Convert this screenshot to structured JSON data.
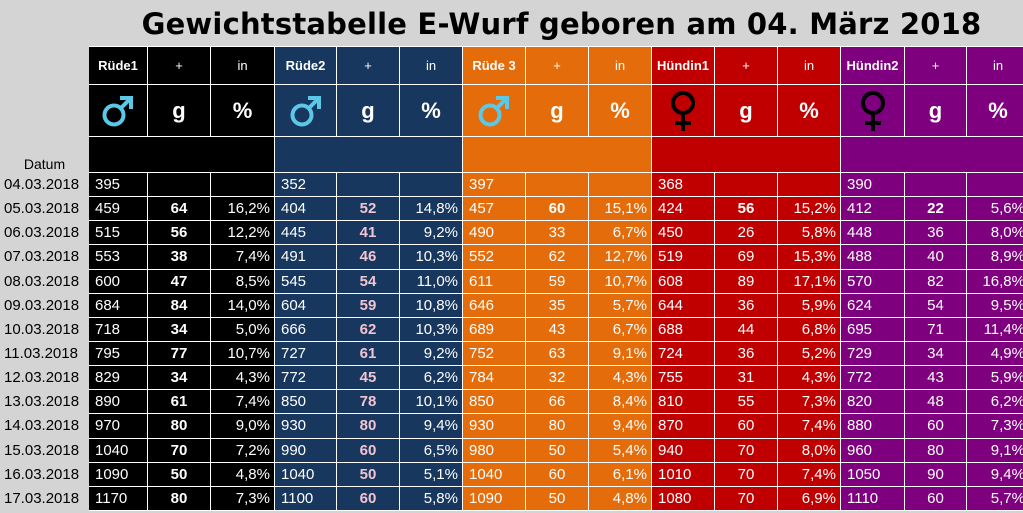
{
  "title": "Gewichtstabelle E-Wurf geboren am 04. März 2018",
  "datum_label": "Datum",
  "unit_g": "g",
  "unit_pct": "%",
  "plus_label": "+",
  "in_label": "in",
  "puppies": [
    {
      "name": "Rüde1",
      "color": "#000000",
      "sex": "male",
      "icon": "male-symbol-icon"
    },
    {
      "name": "Rüde2",
      "color": "#17375e",
      "sex": "male",
      "icon": "male-symbol-icon"
    },
    {
      "name": "Rüde 3",
      "color": "#e46c0a",
      "sex": "male",
      "icon": "male-symbol-icon"
    },
    {
      "name": "Hündin1",
      "color": "#c00000",
      "sex": "female",
      "icon": "female-symbol-icon"
    },
    {
      "name": "Hündin2",
      "color": "#7f007f",
      "sex": "female",
      "icon": "female-symbol-icon"
    }
  ],
  "rows": [
    {
      "date": "04.03.2018",
      "v": [
        [
          "395",
          "",
          ""
        ],
        [
          "352",
          "",
          ""
        ],
        [
          "397",
          "",
          ""
        ],
        [
          "368",
          "",
          ""
        ],
        [
          "390",
          "",
          ""
        ]
      ]
    },
    {
      "date": "05.03.2018",
      "v": [
        [
          "459",
          "64",
          "16,2%"
        ],
        [
          "404",
          "52",
          "14,8%"
        ],
        [
          "457",
          "60",
          "15,1%"
        ],
        [
          "424",
          "56",
          "15,2%"
        ],
        [
          "412",
          "22",
          "5,6%"
        ]
      ]
    },
    {
      "date": "06.03.2018",
      "v": [
        [
          "515",
          "56",
          "12,2%"
        ],
        [
          "445",
          "41",
          "9,2%"
        ],
        [
          "490",
          "33",
          "6,7%"
        ],
        [
          "450",
          "26",
          "5,8%"
        ],
        [
          "448",
          "36",
          "8,0%"
        ]
      ]
    },
    {
      "date": "07.03.2018",
      "v": [
        [
          "553",
          "38",
          "7,4%"
        ],
        [
          "491",
          "46",
          "10,3%"
        ],
        [
          "552",
          "62",
          "12,7%"
        ],
        [
          "519",
          "69",
          "15,3%"
        ],
        [
          "488",
          "40",
          "8,9%"
        ]
      ]
    },
    {
      "date": "08.03.2018",
      "v": [
        [
          "600",
          "47",
          "8,5%"
        ],
        [
          "545",
          "54",
          "11,0%"
        ],
        [
          "611",
          "59",
          "10,7%"
        ],
        [
          "608",
          "89",
          "17,1%"
        ],
        [
          "570",
          "82",
          "16,8%"
        ]
      ]
    },
    {
      "date": "09.03.2018",
      "v": [
        [
          "684",
          "84",
          "14,0%"
        ],
        [
          "604",
          "59",
          "10,8%"
        ],
        [
          "646",
          "35",
          "5,7%"
        ],
        [
          "644",
          "36",
          "5,9%"
        ],
        [
          "624",
          "54",
          "9,5%"
        ]
      ]
    },
    {
      "date": "10.03.2018",
      "v": [
        [
          "718",
          "34",
          "5,0%"
        ],
        [
          "666",
          "62",
          "10,3%"
        ],
        [
          "689",
          "43",
          "6,7%"
        ],
        [
          "688",
          "44",
          "6,8%"
        ],
        [
          "695",
          "71",
          "11,4%"
        ]
      ]
    },
    {
      "date": "11.03.2018",
      "v": [
        [
          "795",
          "77",
          "10,7%"
        ],
        [
          "727",
          "61",
          "9,2%"
        ],
        [
          "752",
          "63",
          "9,1%"
        ],
        [
          "724",
          "36",
          "5,2%"
        ],
        [
          "729",
          "34",
          "4,9%"
        ]
      ]
    },
    {
      "date": "12.03.2018",
      "v": [
        [
          "829",
          "34",
          "4,3%"
        ],
        [
          "772",
          "45",
          "6,2%"
        ],
        [
          "784",
          "32",
          "4,3%"
        ],
        [
          "755",
          "31",
          "4,3%"
        ],
        [
          "772",
          "43",
          "5,9%"
        ]
      ]
    },
    {
      "date": "13.03.2018",
      "v": [
        [
          "890",
          "61",
          "7,4%"
        ],
        [
          "850",
          "78",
          "10,1%"
        ],
        [
          "850",
          "66",
          "8,4%"
        ],
        [
          "810",
          "55",
          "7,3%"
        ],
        [
          "820",
          "48",
          "6,2%"
        ]
      ]
    },
    {
      "date": "14.03.2018",
      "v": [
        [
          "970",
          "80",
          "9,0%"
        ],
        [
          "930",
          "80",
          "9,4%"
        ],
        [
          "930",
          "80",
          "9,4%"
        ],
        [
          "870",
          "60",
          "7,4%"
        ],
        [
          "880",
          "60",
          "7,3%"
        ]
      ]
    },
    {
      "date": "15.03.2018",
      "v": [
        [
          "1040",
          "70",
          "7,2%"
        ],
        [
          "990",
          "60",
          "6,5%"
        ],
        [
          "980",
          "50",
          "5,4%"
        ],
        [
          "940",
          "70",
          "8,0%"
        ],
        [
          "960",
          "80",
          "9,1%"
        ]
      ]
    },
    {
      "date": "16.03.2018",
      "v": [
        [
          "1090",
          "50",
          "4,8%"
        ],
        [
          "1040",
          "50",
          "5,1%"
        ],
        [
          "1040",
          "60",
          "6,1%"
        ],
        [
          "1010",
          "70",
          "7,4%"
        ],
        [
          "1050",
          "90",
          "9,4%"
        ]
      ]
    },
    {
      "date": "17.03.2018",
      "v": [
        [
          "1170",
          "80",
          "7,3%"
        ],
        [
          "1100",
          "60",
          "5,8%"
        ],
        [
          "1090",
          "50",
          "4,8%"
        ],
        [
          "1080",
          "70",
          "6,9%"
        ],
        [
          "1110",
          "60",
          "5,7%"
        ]
      ]
    }
  ]
}
